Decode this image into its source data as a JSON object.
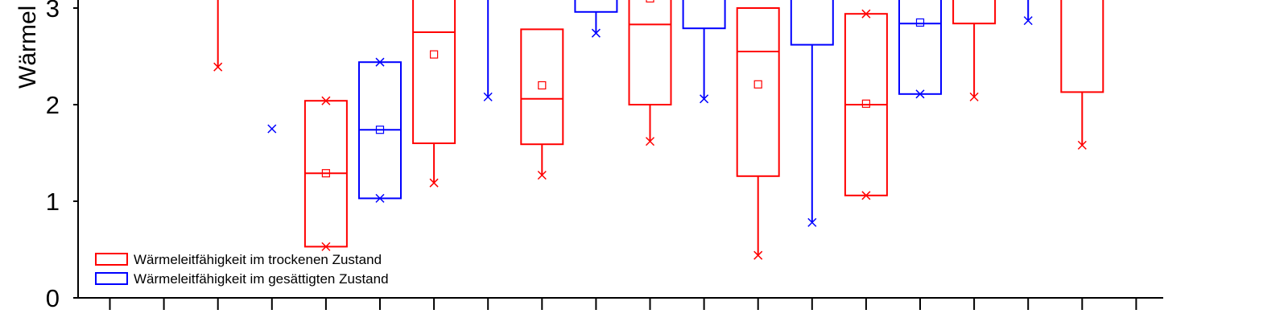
{
  "chart_data": {
    "type": "box",
    "ylabel": "Wärmel",
    "ylim": [
      0,
      3.1
    ],
    "yticks": [
      "0",
      "1",
      "2",
      "3"
    ],
    "legend": [
      {
        "name": "Wärmeleitfähigkeit im trockenen Zustand",
        "color": "#ff0000"
      },
      {
        "name": "Wärmeleitfähigkeit im gesättigten Zustand",
        "color": "#0000ff"
      }
    ],
    "series": [
      {
        "name": "Wärmeleitfähigkeit im trockenen Zustand",
        "color": "#ff0000",
        "boxes": [
          {
            "pos": 3,
            "q1": null,
            "median": null,
            "q3": null,
            "mean": null,
            "whisker_low": 2.39,
            "whisker_high": null
          },
          {
            "pos": 5,
            "q1": 0.53,
            "median": 1.29,
            "q3": 2.04,
            "mean": 1.29,
            "whisker_low": null,
            "whisker_high": null,
            "min": 0.53,
            "max": 2.04
          },
          {
            "pos": 7,
            "q1": 1.6,
            "median": 2.75,
            "q3": null,
            "mean": 2.52,
            "whisker_low": 1.19,
            "whisker_high": null
          },
          {
            "pos": 9,
            "q1": 1.59,
            "median": 2.06,
            "q3": 2.78,
            "mean": 2.2,
            "whisker_low": 1.27,
            "whisker_high": null
          },
          {
            "pos": 11,
            "q1": 2.0,
            "median": 2.83,
            "q3": null,
            "mean": 3.1,
            "whisker_low": 1.62,
            "whisker_high": null
          },
          {
            "pos": 13,
            "q1": 1.26,
            "median": 2.55,
            "q3": 3.0,
            "mean": 2.21,
            "whisker_low": 0.44,
            "whisker_high": null
          },
          {
            "pos": 15,
            "q1": 1.06,
            "median": 2.0,
            "q3": 2.94,
            "mean": 2.01,
            "whisker_low": null,
            "whisker_high": null,
            "min": 1.06,
            "max": 2.94
          },
          {
            "pos": 17,
            "q1": 2.84,
            "median": null,
            "q3": null,
            "mean": null,
            "whisker_low": 2.08,
            "whisker_high": null
          },
          {
            "pos": 19,
            "q1": 2.13,
            "median": null,
            "q3": null,
            "mean": null,
            "whisker_low": 1.58,
            "whisker_high": null
          }
        ]
      },
      {
        "name": "Wärmeleitfähigkeit im gesättigten Zustand",
        "color": "#0000ff",
        "boxes": [
          {
            "pos": 4,
            "q1": null,
            "median": null,
            "q3": null,
            "mean": null,
            "whisker_low": null,
            "whisker_high": null,
            "min": 1.75
          },
          {
            "pos": 6,
            "q1": 1.03,
            "median": 1.74,
            "q3": 2.44,
            "mean": 1.74,
            "whisker_low": null,
            "whisker_high": null,
            "min": 1.03,
            "max": 2.44
          },
          {
            "pos": 8,
            "q1": null,
            "median": null,
            "q3": null,
            "mean": null,
            "whisker_low": 2.08,
            "whisker_high": null
          },
          {
            "pos": 10,
            "q1": 2.96,
            "median": null,
            "q3": null,
            "mean": null,
            "whisker_low": 2.74,
            "whisker_high": null
          },
          {
            "pos": 12,
            "q1": 2.79,
            "median": null,
            "q3": null,
            "mean": null,
            "whisker_low": 2.06,
            "whisker_high": null
          },
          {
            "pos": 14,
            "q1": 2.62,
            "median": null,
            "q3": null,
            "mean": null,
            "whisker_low": 0.78,
            "whisker_high": null
          },
          {
            "pos": 16,
            "q1": 2.11,
            "median": 2.84,
            "q3": null,
            "mean": 2.85,
            "whisker_low": null,
            "whisker_high": null,
            "min": 2.11
          },
          {
            "pos": 18,
            "q1": null,
            "median": null,
            "q3": null,
            "mean": null,
            "whisker_low": 2.87,
            "whisker_high": null
          }
        ]
      }
    ],
    "x_positions": 19,
    "grid": false,
    "legend_position": "bottom-left"
  }
}
